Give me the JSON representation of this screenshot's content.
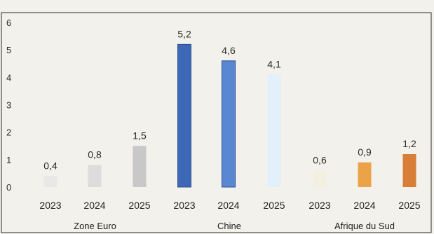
{
  "chart_data": {
    "type": "bar",
    "title": "",
    "xlabel": "",
    "ylabel": "",
    "ylim": [
      0,
      6
    ],
    "yticks": [
      "0",
      "1",
      "2",
      "3",
      "4",
      "5",
      "6"
    ],
    "grid": false,
    "legend": "none",
    "groups": [
      {
        "name": "Zone Euro",
        "bars": [
          {
            "year": "2023",
            "value": 0.4,
            "label": "0,4",
            "color": "#e9e8e6"
          },
          {
            "year": "2024",
            "value": 0.8,
            "label": "0,8",
            "color": "#dcdcdc"
          },
          {
            "year": "2025",
            "value": 1.5,
            "label": "1,5",
            "color": "#c8c8c8"
          }
        ]
      },
      {
        "name": "Chine",
        "bars": [
          {
            "year": "2023",
            "value": 5.2,
            "label": "5,2",
            "color": "#3d68b8"
          },
          {
            "year": "2024",
            "value": 4.6,
            "label": "4,6",
            "color": "#5a87d2"
          },
          {
            "year": "2025",
            "value": 4.1,
            "label": "4,1",
            "color": "#e2f0fb"
          }
        ]
      },
      {
        "name": "Afrique du Sud",
        "bars": [
          {
            "year": "2023",
            "value": 0.6,
            "label": "0,6",
            "color": "#f4f0df"
          },
          {
            "year": "2024",
            "value": 0.9,
            "label": "0,9",
            "color": "#eba348"
          },
          {
            "year": "2025",
            "value": 1.2,
            "label": "1,2",
            "color": "#d77f38"
          }
        ]
      }
    ]
  }
}
